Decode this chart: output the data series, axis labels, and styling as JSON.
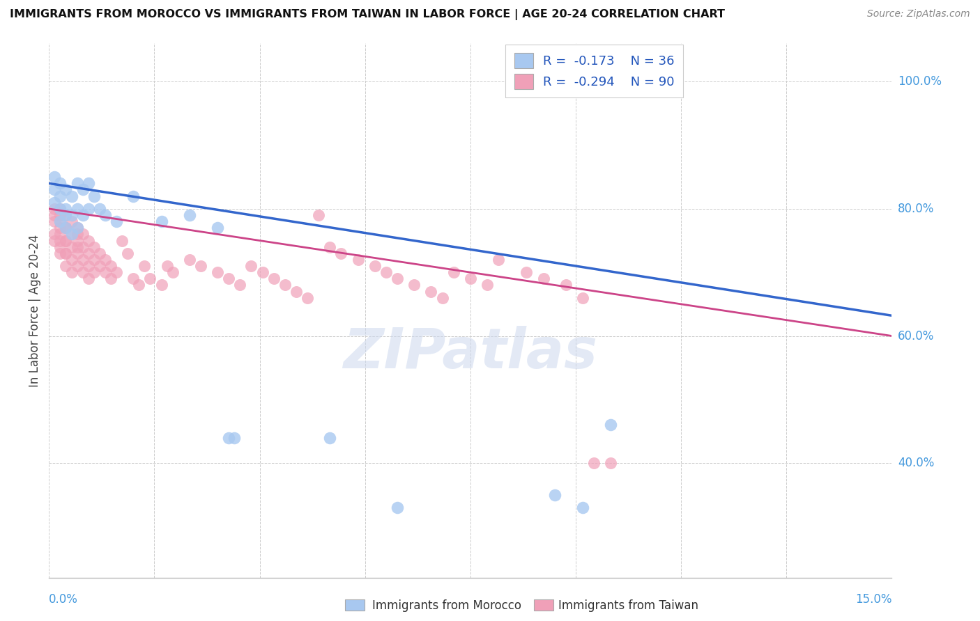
{
  "title": "IMMIGRANTS FROM MOROCCO VS IMMIGRANTS FROM TAIWAN IN LABOR FORCE | AGE 20-24 CORRELATION CHART",
  "source": "Source: ZipAtlas.com",
  "ylabel": "In Labor Force | Age 20-24",
  "xlim": [
    0.0,
    0.15
  ],
  "ylim": [
    0.22,
    1.06
  ],
  "yticks": [
    0.4,
    0.6,
    0.8,
    1.0
  ],
  "ytick_labels": [
    "40.0%",
    "60.0%",
    "80.0%",
    "100.0%"
  ],
  "legend_r_morocco": "-0.173",
  "legend_n_morocco": "36",
  "legend_r_taiwan": "-0.294",
  "legend_n_taiwan": "90",
  "color_morocco": "#a8c8f0",
  "color_taiwan": "#f0a0b8",
  "trendline_color_morocco": "#3366cc",
  "trendline_color_taiwan": "#cc4488",
  "morocco_trend_y0": 0.84,
  "morocco_trend_y1": 0.632,
  "taiwan_trend_y0": 0.8,
  "taiwan_trend_y1": 0.6,
  "morocco_x": [
    0.001,
    0.001,
    0.001,
    0.002,
    0.002,
    0.002,
    0.002,
    0.003,
    0.003,
    0.003,
    0.003,
    0.004,
    0.004,
    0.004,
    0.005,
    0.005,
    0.005,
    0.006,
    0.006,
    0.007,
    0.007,
    0.008,
    0.009,
    0.01,
    0.012,
    0.015,
    0.02,
    0.025,
    0.03,
    0.032,
    0.033,
    0.05,
    0.062,
    0.09,
    0.095,
    0.1
  ],
  "morocco_y": [
    0.83,
    0.81,
    0.85,
    0.82,
    0.8,
    0.78,
    0.84,
    0.83,
    0.8,
    0.79,
    0.77,
    0.82,
    0.79,
    0.76,
    0.84,
    0.8,
    0.77,
    0.83,
    0.79,
    0.84,
    0.8,
    0.82,
    0.8,
    0.79,
    0.78,
    0.82,
    0.78,
    0.79,
    0.77,
    0.44,
    0.44,
    0.44,
    0.33,
    0.35,
    0.33,
    0.46
  ],
  "taiwan_x": [
    0.001,
    0.001,
    0.001,
    0.001,
    0.001,
    0.002,
    0.002,
    0.002,
    0.002,
    0.002,
    0.002,
    0.002,
    0.002,
    0.003,
    0.003,
    0.003,
    0.003,
    0.003,
    0.003,
    0.003,
    0.003,
    0.004,
    0.004,
    0.004,
    0.004,
    0.004,
    0.005,
    0.005,
    0.005,
    0.005,
    0.005,
    0.005,
    0.006,
    0.006,
    0.006,
    0.006,
    0.007,
    0.007,
    0.007,
    0.007,
    0.008,
    0.008,
    0.008,
    0.009,
    0.009,
    0.01,
    0.01,
    0.011,
    0.011,
    0.012,
    0.013,
    0.014,
    0.015,
    0.016,
    0.017,
    0.018,
    0.02,
    0.021,
    0.022,
    0.025,
    0.027,
    0.03,
    0.032,
    0.034,
    0.036,
    0.038,
    0.04,
    0.042,
    0.044,
    0.046,
    0.048,
    0.05,
    0.052,
    0.055,
    0.058,
    0.06,
    0.062,
    0.065,
    0.068,
    0.07,
    0.072,
    0.075,
    0.078,
    0.08,
    0.085,
    0.088,
    0.092,
    0.095,
    0.097,
    0.1
  ],
  "taiwan_y": [
    0.8,
    0.78,
    0.76,
    0.79,
    0.75,
    0.8,
    0.78,
    0.76,
    0.74,
    0.79,
    0.77,
    0.75,
    0.73,
    0.79,
    0.77,
    0.75,
    0.73,
    0.77,
    0.75,
    0.73,
    0.71,
    0.78,
    0.76,
    0.74,
    0.72,
    0.7,
    0.77,
    0.75,
    0.73,
    0.71,
    0.76,
    0.74,
    0.76,
    0.74,
    0.72,
    0.7,
    0.75,
    0.73,
    0.71,
    0.69,
    0.74,
    0.72,
    0.7,
    0.73,
    0.71,
    0.72,
    0.7,
    0.71,
    0.69,
    0.7,
    0.75,
    0.73,
    0.69,
    0.68,
    0.71,
    0.69,
    0.68,
    0.71,
    0.7,
    0.72,
    0.71,
    0.7,
    0.69,
    0.68,
    0.71,
    0.7,
    0.69,
    0.68,
    0.67,
    0.66,
    0.79,
    0.74,
    0.73,
    0.72,
    0.71,
    0.7,
    0.69,
    0.68,
    0.67,
    0.66,
    0.7,
    0.69,
    0.68,
    0.72,
    0.7,
    0.69,
    0.68,
    0.66,
    0.4,
    0.4
  ]
}
